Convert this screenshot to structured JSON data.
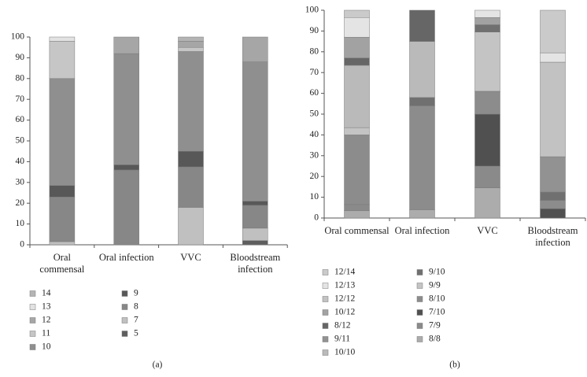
{
  "chart_data": [
    {
      "type": "stacked_bar",
      "label": "(a)",
      "categories": [
        "Oral commensal",
        "Oral infection",
        "VVC",
        "Bloodstream infection"
      ],
      "ylim": [
        0,
        100
      ],
      "yticks": [
        0,
        10,
        20,
        30,
        40,
        50,
        60,
        70,
        80,
        90,
        100
      ],
      "series": [
        {
          "name": "14",
          "color": "#b4b4b4",
          "values": [
            0,
            0,
            2,
            0
          ]
        },
        {
          "name": "13",
          "color": "#e2e2e2",
          "values": [
            2,
            0,
            0,
            0
          ]
        },
        {
          "name": "12",
          "color": "#a6a6a6",
          "values": [
            0,
            8,
            3,
            12
          ]
        },
        {
          "name": "11",
          "color": "#c6c6c6",
          "values": [
            18,
            0,
            2,
            0
          ]
        },
        {
          "name": "10",
          "color": "#8f8f8f",
          "values": [
            51.5,
            53.5,
            48,
            67
          ]
        },
        {
          "name": "9",
          "color": "#585858",
          "values": [
            5.5,
            2.5,
            7.5,
            2
          ]
        },
        {
          "name": "8",
          "color": "#878787",
          "values": [
            21.5,
            36,
            19.5,
            11
          ]
        },
        {
          "name": "7",
          "color": "#c0c0c0",
          "values": [
            1.5,
            0,
            18,
            6
          ]
        },
        {
          "name": "5",
          "color": "#5e5e5e",
          "values": [
            0,
            0,
            0,
            2
          ]
        }
      ]
    },
    {
      "type": "stacked_bar",
      "label": "(b)",
      "categories": [
        "Oral commensal",
        "Oral infection",
        "VVC",
        "Bloodstream infection"
      ],
      "ylim": [
        0,
        100
      ],
      "yticks": [
        0,
        10,
        20,
        30,
        40,
        50,
        60,
        70,
        80,
        90,
        100
      ],
      "series": [
        {
          "name": "12/14",
          "color": "#cacaca",
          "values": [
            3.5,
            0,
            0,
            20.5
          ]
        },
        {
          "name": "12/13",
          "color": "#e4e4e4",
          "values": [
            9.5,
            0,
            3.5,
            4.5
          ]
        },
        {
          "name": "12/12",
          "color": "#c2c2c2",
          "values": [
            0,
            0,
            0,
            45.5
          ]
        },
        {
          "name": "10/12",
          "color": "#a2a2a2",
          "values": [
            10,
            0,
            3.5,
            0
          ]
        },
        {
          "name": "8/12",
          "color": "#666666",
          "values": [
            3.5,
            15,
            0,
            0
          ]
        },
        {
          "name": "9/11",
          "color": "#929292",
          "values": [
            0,
            0,
            0,
            17
          ]
        },
        {
          "name": "10/10",
          "color": "#bababa",
          "values": [
            30,
            27,
            0,
            0
          ]
        },
        {
          "name": "9/10",
          "color": "#707070",
          "values": [
            0,
            4,
            3.5,
            4
          ]
        },
        {
          "name": "9/9",
          "color": "#c4c4c4",
          "values": [
            3.5,
            0,
            28.5,
            0
          ]
        },
        {
          "name": "8/10",
          "color": "#8c8c8c",
          "values": [
            33.5,
            50,
            11,
            4
          ]
        },
        {
          "name": "7/10",
          "color": "#505050",
          "values": [
            0,
            0,
            25,
            4.5
          ]
        },
        {
          "name": "7/9",
          "color": "#8a8a8a",
          "values": [
            3,
            0,
            10.5,
            0
          ]
        },
        {
          "name": "8/8",
          "color": "#acacac",
          "values": [
            3.5,
            4,
            14.5,
            0
          ]
        }
      ]
    }
  ]
}
